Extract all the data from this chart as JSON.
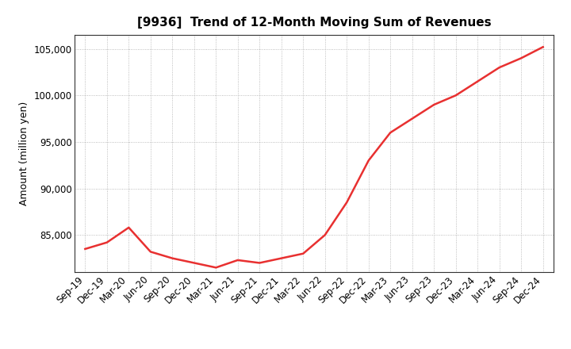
{
  "title": "[9936]  Trend of 12-Month Moving Sum of Revenues",
  "ylabel": "Amount (million yen)",
  "line_color": "#e83030",
  "background_color": "#ffffff",
  "grid_color": "#aaaaaa",
  "x_labels": [
    "Sep-19",
    "Dec-19",
    "Mar-20",
    "Jun-20",
    "Sep-20",
    "Dec-20",
    "Mar-21",
    "Jun-21",
    "Sep-21",
    "Dec-21",
    "Mar-22",
    "Jun-22",
    "Sep-22",
    "Dec-22",
    "Mar-23",
    "Jun-23",
    "Sep-23",
    "Dec-23",
    "Mar-24",
    "Jun-24",
    "Sep-24",
    "Dec-24"
  ],
  "values": [
    83500,
    84200,
    85800,
    83200,
    82500,
    82000,
    81500,
    82300,
    82000,
    82500,
    83000,
    85000,
    88500,
    93000,
    96000,
    97500,
    99000,
    100000,
    101500,
    103000,
    104000,
    105200
  ],
  "ylim_min": 81000,
  "ylim_max": 106500,
  "yticks": [
    85000,
    90000,
    95000,
    100000,
    105000
  ],
  "title_fontsize": 11,
  "label_fontsize": 9,
  "tick_fontsize": 8.5
}
